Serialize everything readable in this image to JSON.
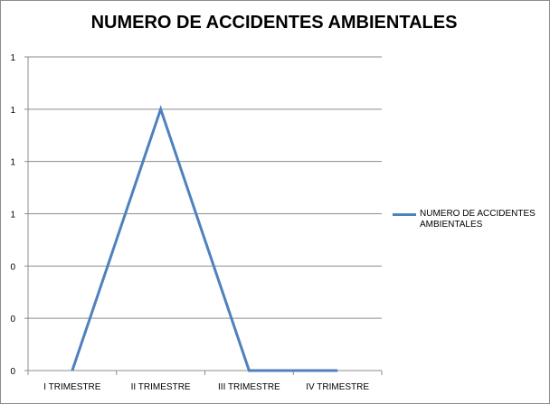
{
  "chart_data": {
    "type": "line",
    "title": "NUMERO DE ACCIDENTES AMBIENTALES",
    "categories": [
      "I TRIMESTRE",
      "II TRIMESTRE",
      "III TRIMESTRE",
      "IV TRIMESTRE"
    ],
    "series": [
      {
        "name": "NUMERO DE ACCIDENTES AMBIENTALES",
        "values": [
          0,
          1,
          0,
          0
        ],
        "color": "#4f81bd"
      }
    ],
    "y_tick_labels": [
      "0",
      "0",
      "0",
      "1",
      "1",
      "1",
      "1"
    ],
    "ylim": [
      0,
      1.2
    ],
    "grid": true,
    "legend": "right"
  }
}
